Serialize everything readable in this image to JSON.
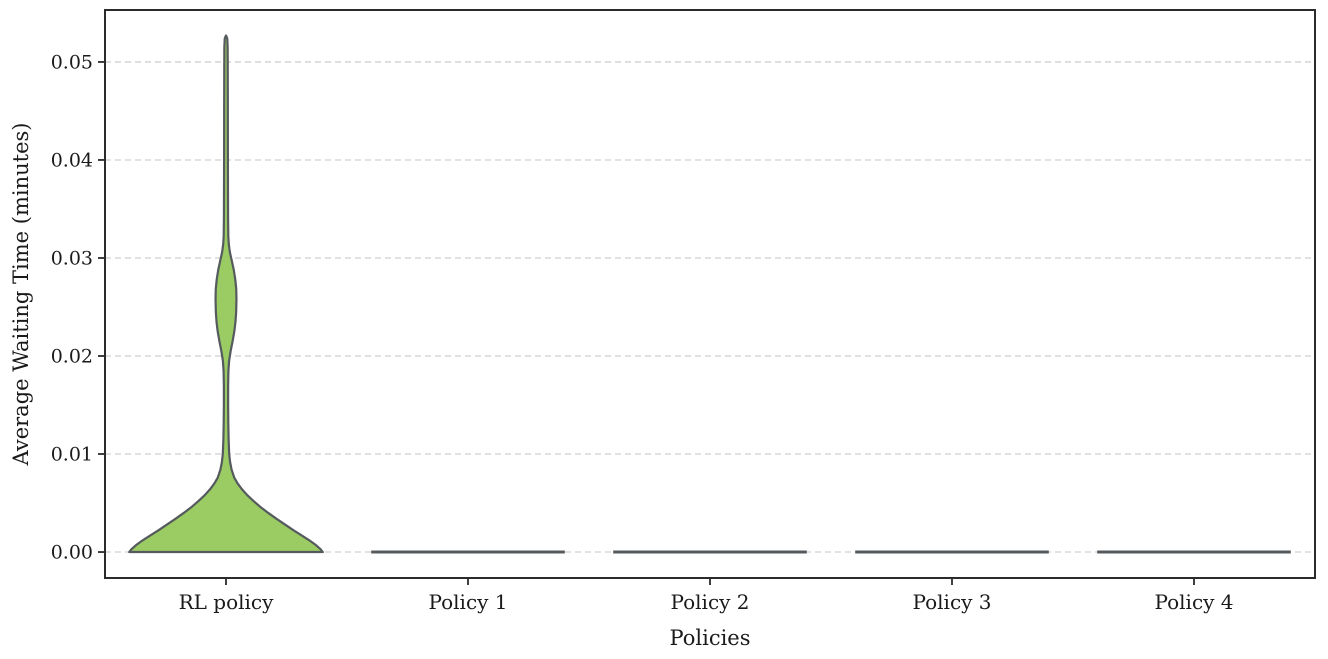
{
  "chart_data": {
    "type": "violin",
    "title": "",
    "xlabel": "Policies",
    "ylabel": "Average Waiting Time (minutes)",
    "categories": [
      "RL policy",
      "Policy 1",
      "Policy 2",
      "Policy 3",
      "Policy 4"
    ],
    "ylim": [
      -0.00265,
      0.0553
    ],
    "ytick_values": [
      0.0,
      0.01,
      0.02,
      0.03,
      0.04,
      0.05
    ],
    "ytick_labels": [
      "0.00",
      "0.01",
      "0.02",
      "0.03",
      "0.04",
      "0.05"
    ],
    "grid": "dashed horizontal gridlines at each y tick",
    "legend": "none",
    "violin_width_fraction": 0.8,
    "series": [
      {
        "name": "RL policy",
        "collapsed": false,
        "summary": {
          "min": 0.0,
          "max": 0.0527,
          "primary_mode": 0.0,
          "secondary_mode": 0.0265
        },
        "profile": [
          [
            0.0,
            1.0
          ],
          [
            0.0003,
            0.975
          ],
          [
            0.0007,
            0.93
          ],
          [
            0.0012,
            0.86
          ],
          [
            0.0017,
            0.78
          ],
          [
            0.0022,
            0.7
          ],
          [
            0.0028,
            0.61
          ],
          [
            0.0034,
            0.52
          ],
          [
            0.004,
            0.435
          ],
          [
            0.0046,
            0.355
          ],
          [
            0.0052,
            0.285
          ],
          [
            0.0058,
            0.22
          ],
          [
            0.0064,
            0.165
          ],
          [
            0.007,
            0.12
          ],
          [
            0.0076,
            0.085
          ],
          [
            0.0084,
            0.058
          ],
          [
            0.0092,
            0.042
          ],
          [
            0.01,
            0.033
          ],
          [
            0.0115,
            0.027
          ],
          [
            0.013,
            0.024
          ],
          [
            0.015,
            0.022
          ],
          [
            0.017,
            0.022
          ],
          [
            0.0185,
            0.025
          ],
          [
            0.0195,
            0.032
          ],
          [
            0.0205,
            0.048
          ],
          [
            0.0215,
            0.068
          ],
          [
            0.0225,
            0.086
          ],
          [
            0.0235,
            0.098
          ],
          [
            0.0245,
            0.105
          ],
          [
            0.0258,
            0.108
          ],
          [
            0.0268,
            0.106
          ],
          [
            0.0278,
            0.096
          ],
          [
            0.0288,
            0.08
          ],
          [
            0.0298,
            0.058
          ],
          [
            0.0306,
            0.04
          ],
          [
            0.0314,
            0.029
          ],
          [
            0.0322,
            0.024
          ],
          [
            0.034,
            0.0215
          ],
          [
            0.037,
            0.0205
          ],
          [
            0.041,
            0.0195
          ],
          [
            0.045,
            0.019
          ],
          [
            0.049,
            0.018
          ],
          [
            0.0515,
            0.017
          ],
          [
            0.0524,
            0.013
          ],
          [
            0.0527,
            0.0
          ]
        ]
      },
      {
        "name": "Policy 1",
        "collapsed": true,
        "summary": {
          "min": 0.0,
          "max": 0.0,
          "primary_mode": 0.0
        },
        "profile": [
          [
            0.0,
            1.0
          ]
        ]
      },
      {
        "name": "Policy 2",
        "collapsed": true,
        "summary": {
          "min": 0.0,
          "max": 0.0,
          "primary_mode": 0.0
        },
        "profile": [
          [
            0.0,
            1.0
          ]
        ]
      },
      {
        "name": "Policy 3",
        "collapsed": true,
        "summary": {
          "min": 0.0,
          "max": 0.0,
          "primary_mode": 0.0
        },
        "profile": [
          [
            0.0,
            1.0
          ]
        ]
      },
      {
        "name": "Policy 4",
        "collapsed": true,
        "summary": {
          "min": 0.0,
          "max": 0.0,
          "primary_mode": 0.0
        },
        "profile": [
          [
            0.0,
            1.0
          ]
        ]
      }
    ],
    "colors": {
      "violin_fill": "#9bcb63",
      "violin_edge": "#555a5e",
      "collapsed_line": "#555a5e",
      "gridline": "#cfcfcf",
      "spine": "#2b2b2b",
      "tick": "#2b2b2b",
      "text": "#1a1a1a",
      "background": "#ffffff"
    }
  }
}
